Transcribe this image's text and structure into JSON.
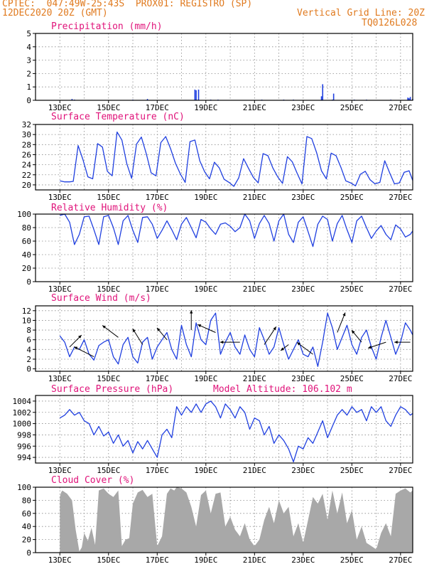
{
  "header": {
    "line1": "CPTEC:  047:49W-25:43S  PROX01: REGISTRO (SP)",
    "line2_left": "12DEC2020 20Z (GMT)",
    "line2_right": "Vertical Grid Line: 20Z",
    "code": "TQ0126L028"
  },
  "x_tick_labels": [
    "13DEC",
    "15DEC",
    "17DEC",
    "19DEC",
    "21DEC",
    "23DEC",
    "25DEC",
    "27DEC"
  ],
  "colors": {
    "line": "#1f3fe0",
    "title": "#e0137a",
    "header": "#e07a1f",
    "cloud": "#a8a8a8",
    "grid": "#888888"
  },
  "chart_data": [
    {
      "type": "bar",
      "title": "Precipitation (mm/h)",
      "y_ticks": [
        0,
        1,
        2,
        3,
        4,
        5
      ],
      "ylim": [
        0,
        5
      ],
      "x": [
        0.5,
        0.6,
        3.0,
        3.6,
        5.55,
        5.6,
        5.7,
        6.2,
        6.5,
        8.3,
        9.2,
        9.6,
        10.75,
        10.8,
        11.2,
        11.25,
        12.1,
        12.6,
        13.6,
        14.3,
        14.35,
        14.4,
        14.5
      ],
      "values": [
        0.1,
        0.05,
        0.05,
        0.1,
        0.8,
        0.75,
        0.8,
        0.05,
        0.05,
        0.05,
        0.05,
        0.05,
        0.3,
        1.2,
        0.05,
        0.5,
        0.05,
        0.05,
        0.05,
        0.2,
        0.15,
        0.25,
        0.1
      ]
    },
    {
      "type": "line",
      "title": "Surface Temperature (nC)",
      "y_ticks": [
        20,
        22,
        24,
        26,
        28,
        30,
        32
      ],
      "ylim": [
        19,
        32
      ],
      "x": [
        0,
        0.2,
        0.4,
        0.55,
        0.75,
        0.95,
        1.15,
        1.35,
        1.55,
        1.75,
        1.95,
        2.15,
        2.35,
        2.55,
        2.75,
        2.95,
        3.15,
        3.35,
        3.55,
        3.75,
        3.95,
        4.15,
        4.35,
        4.55,
        4.75,
        4.95,
        5.15,
        5.35,
        5.55,
        5.75,
        5.95,
        6.15,
        6.35,
        6.55,
        6.75,
        6.95,
        7.15,
        7.35,
        7.55,
        7.75,
        7.95,
        8.15,
        8.35,
        8.55,
        8.75,
        8.95,
        9.15,
        9.35,
        9.55,
        9.75,
        9.95,
        10.15,
        10.35,
        10.55,
        10.75,
        10.95,
        11.15,
        11.35,
        11.55,
        11.75,
        11.95,
        12.15,
        12.35,
        12.55,
        12.75,
        12.95,
        13.15,
        13.35,
        13.55,
        13.75,
        13.95,
        14.15,
        14.35,
        14.5
      ],
      "values": [
        20.8,
        20.6,
        20.6,
        20.7,
        27.8,
        25,
        21.6,
        21.2,
        28.2,
        27.5,
        22.7,
        21.8,
        30.5,
        28.9,
        24.2,
        21.3,
        28.1,
        29.5,
        26.2,
        22.4,
        21.8,
        28.4,
        29.6,
        27.2,
        24.3,
        22.2,
        20.5,
        28.6,
        28.9,
        24.8,
        22.6,
        21.2,
        24.5,
        23.4,
        21.1,
        20.5,
        19.7,
        21.4,
        25.2,
        23.3,
        21.5,
        20.4,
        26.2,
        25.8,
        23.4,
        21.6,
        20.3,
        25.6,
        24.6,
        22.3,
        20.2,
        29.6,
        29.2,
        26.4,
        22.8,
        21.2,
        26.3,
        25.8,
        23.5,
        20.8,
        20.4,
        19.8,
        22.1,
        22.7,
        21,
        20.2,
        20.5,
        24.8,
        22.4,
        20.2,
        20.4,
        22.5,
        22.8,
        20.9
      ]
    },
    {
      "type": "line",
      "title": "Relative Humidity (%)",
      "y_ticks": [
        0,
        20,
        40,
        60,
        80,
        100
      ],
      "ylim": [
        0,
        100
      ],
      "x": [
        0,
        0.2,
        0.4,
        0.6,
        0.8,
        1.0,
        1.2,
        1.4,
        1.6,
        1.8,
        2.0,
        2.2,
        2.4,
        2.6,
        2.8,
        3.0,
        3.2,
        3.4,
        3.6,
        3.8,
        4.0,
        4.2,
        4.4,
        4.6,
        4.8,
        5.0,
        5.2,
        5.4,
        5.6,
        5.8,
        6.0,
        6.2,
        6.4,
        6.6,
        6.8,
        7.0,
        7.2,
        7.4,
        7.6,
        7.8,
        8.0,
        8.2,
        8.4,
        8.6,
        8.8,
        9.0,
        9.2,
        9.4,
        9.6,
        9.8,
        10.0,
        10.2,
        10.4,
        10.6,
        10.8,
        11.0,
        11.2,
        11.4,
        11.6,
        11.8,
        12.0,
        12.2,
        12.4,
        12.6,
        12.8,
        13.0,
        13.2,
        13.4,
        13.6,
        13.8,
        14.0,
        14.2,
        14.4,
        14.5
      ],
      "values": [
        98,
        100,
        88,
        55,
        70,
        96,
        97,
        77,
        55,
        96,
        98,
        80,
        55,
        90,
        98,
        76,
        58,
        95,
        96,
        85,
        64,
        76,
        90,
        77,
        62,
        85,
        95,
        80,
        65,
        92,
        88,
        78,
        70,
        85,
        87,
        82,
        74,
        80,
        100,
        90,
        64,
        86,
        98,
        86,
        60,
        90,
        100,
        70,
        58,
        88,
        96,
        74,
        52,
        85,
        97,
        92,
        60,
        86,
        98,
        77,
        58,
        90,
        97,
        80,
        64,
        75,
        83,
        70,
        62,
        84,
        78,
        66,
        70,
        75
      ]
    },
    {
      "type": "line",
      "title": "Surface Wind (m/s)",
      "y_ticks": [
        0,
        2,
        4,
        6,
        8,
        10,
        12
      ],
      "ylim": [
        -0.5,
        13
      ],
      "x": [
        0,
        0.2,
        0.4,
        0.6,
        0.8,
        1.0,
        1.2,
        1.4,
        1.6,
        1.8,
        2.0,
        2.2,
        2.4,
        2.6,
        2.8,
        3.0,
        3.2,
        3.4,
        3.6,
        3.8,
        4.0,
        4.2,
        4.4,
        4.6,
        4.8,
        5.0,
        5.2,
        5.4,
        5.6,
        5.8,
        6.0,
        6.2,
        6.4,
        6.6,
        6.8,
        7.0,
        7.2,
        7.4,
        7.6,
        7.8,
        8.0,
        8.2,
        8.4,
        8.6,
        8.8,
        9.0,
        9.2,
        9.4,
        9.6,
        9.8,
        10.0,
        10.2,
        10.4,
        10.6,
        10.8,
        11.0,
        11.2,
        11.4,
        11.6,
        11.8,
        12.0,
        12.2,
        12.4,
        12.6,
        12.8,
        13.0,
        13.2,
        13.4,
        13.6,
        13.8,
        14.0,
        14.2,
        14.4,
        14.5
      ],
      "values": [
        6.8,
        5.5,
        2.5,
        4.5,
        4.0,
        6.0,
        3.0,
        1.8,
        4.8,
        5.5,
        6.0,
        2.5,
        1.0,
        5.0,
        6.5,
        2.5,
        1.2,
        5.5,
        6.5,
        2.0,
        4.5,
        6.0,
        7.5,
        4.0,
        2.0,
        9.0,
        5.0,
        2.5,
        9.5,
        6.0,
        5.0,
        10.0,
        11.5,
        3.0,
        5.5,
        7.5,
        4.5,
        3.0,
        7.0,
        4.0,
        2.5,
        8.5,
        6.0,
        3.0,
        4.5,
        8.5,
        5.0,
        2.0,
        4.0,
        6.0,
        3.0,
        2.5,
        4.5,
        0.5,
        5.5,
        11.5,
        8.5,
        4.0,
        6.5,
        9.0,
        5.0,
        3.0,
        6.5,
        8.0,
        4.5,
        2.0,
        6.5,
        10.0,
        6.5,
        3.0,
        5.5,
        9.5,
        8.0,
        7.0
      ],
      "arrows": {
        "x": [
          0.4,
          1.4,
          2.4,
          3.4,
          4.4,
          5.4,
          6.4,
          7.4,
          8.4,
          9.4,
          10.4,
          11.4,
          12.4,
          13.4,
          14.4
        ],
        "y": [
          4.5,
          2.5,
          6.5,
          5.0,
          6.0,
          8.0,
          7.5,
          5.5,
          5.0,
          5.0,
          3.0,
          7.5,
          5.5,
          5.5,
          5.5
        ],
        "u": [
          0.6,
          -1.0,
          -0.8,
          -0.5,
          -0.5,
          0.0,
          -0.9,
          -1.0,
          0.6,
          -0.4,
          -0.8,
          0.4,
          -0.5,
          -0.9,
          -0.8
        ],
        "v": [
          0.6,
          0.5,
          0.6,
          0.8,
          0.6,
          1.0,
          0.4,
          0.0,
          0.9,
          -0.3,
          0.6,
          1.0,
          0.6,
          -0.3,
          0.0
        ]
      }
    },
    {
      "type": "line",
      "title": "Surface Pressure (hPa)",
      "annotation": "Model Altitude: 106.102 m",
      "y_ticks": [
        994,
        996,
        998,
        1000,
        1002,
        1004
      ],
      "ylim": [
        993,
        1005
      ],
      "x": [
        0,
        0.2,
        0.4,
        0.6,
        0.8,
        1.0,
        1.2,
        1.4,
        1.6,
        1.8,
        2.0,
        2.2,
        2.4,
        2.6,
        2.8,
        3.0,
        3.2,
        3.4,
        3.6,
        3.8,
        4.0,
        4.2,
        4.4,
        4.6,
        4.8,
        5.0,
        5.2,
        5.4,
        5.6,
        5.8,
        6.0,
        6.2,
        6.4,
        6.6,
        6.8,
        7.0,
        7.2,
        7.4,
        7.6,
        7.8,
        8.0,
        8.2,
        8.4,
        8.6,
        8.8,
        9.0,
        9.2,
        9.4,
        9.6,
        9.8,
        10.0,
        10.2,
        10.4,
        10.6,
        10.8,
        11.0,
        11.2,
        11.4,
        11.6,
        11.8,
        12.0,
        12.2,
        12.4,
        12.6,
        12.8,
        13.0,
        13.2,
        13.4,
        13.6,
        13.8,
        14.0,
        14.2,
        14.4,
        14.5
      ],
      "values": [
        1001.0,
        1001.5,
        1002.5,
        1001.5,
        1002.0,
        1000.5,
        1000.0,
        998.0,
        999.5,
        997.8,
        998.5,
        996.5,
        998.0,
        996.0,
        997.0,
        994.8,
        996.8,
        995.5,
        997.0,
        995.5,
        994.0,
        998.0,
        999.0,
        997.5,
        1003.0,
        1001.5,
        1003.0,
        1002.0,
        1003.5,
        1002.0,
        1003.5,
        1004.0,
        1003.0,
        1001.0,
        1003.5,
        1002.5,
        1001.0,
        1003.0,
        1002.0,
        999.0,
        1001.0,
        1000.5,
        998.0,
        999.5,
        996.5,
        998.0,
        997.0,
        995.5,
        993.2,
        996.0,
        995.5,
        997.5,
        996.5,
        998.5,
        1000.5,
        997.5,
        999.5,
        1001.5,
        1002.5,
        1001.5,
        1003.0,
        1002.0,
        1002.5,
        1000.5,
        1003.0,
        1002.0,
        1003.0,
        1000.5,
        999.5,
        1001.5,
        1003.0,
        1002.5,
        1001.5,
        1001.8
      ]
    },
    {
      "type": "area",
      "title": "Cloud Cover (%)",
      "y_ticks": [
        0,
        20,
        40,
        60,
        80,
        100
      ],
      "ylim": [
        0,
        100
      ],
      "x": [
        0,
        0.05,
        0.1,
        0.3,
        0.5,
        0.65,
        0.8,
        0.9,
        1.0,
        1.15,
        1.3,
        1.45,
        1.6,
        1.8,
        2.0,
        2.2,
        2.4,
        2.55,
        2.7,
        2.85,
        3.0,
        3.2,
        3.4,
        3.6,
        3.8,
        4.0,
        4.2,
        4.4,
        4.55,
        4.7,
        4.8,
        5.0,
        5.2,
        5.4,
        5.6,
        5.8,
        6.0,
        6.2,
        6.4,
        6.6,
        6.8,
        7.0,
        7.2,
        7.4,
        7.6,
        7.8,
        8.0,
        8.2,
        8.4,
        8.6,
        8.8,
        9.0,
        9.2,
        9.4,
        9.6,
        9.8,
        10.0,
        10.2,
        10.4,
        10.6,
        10.8,
        11.0,
        11.2,
        11.4,
        11.6,
        11.8,
        12.0,
        12.2,
        12.4,
        12.6,
        12.8,
        13.0,
        13.2,
        13.4,
        13.6,
        13.8,
        14.0,
        14.2,
        14.4,
        14.5
      ],
      "values": [
        85,
        92,
        95,
        90,
        80,
        35,
        2,
        8,
        30,
        18,
        38,
        12,
        95,
        98,
        90,
        85,
        95,
        10,
        20,
        22,
        75,
        92,
        96,
        85,
        90,
        10,
        25,
        90,
        98,
        95,
        100,
        98,
        92,
        70,
        40,
        88,
        95,
        60,
        90,
        92,
        40,
        55,
        35,
        25,
        45,
        20,
        10,
        20,
        50,
        70,
        45,
        80,
        60,
        70,
        25,
        45,
        15,
        50,
        85,
        75,
        90,
        50,
        95,
        60,
        92,
        45,
        65,
        20,
        40,
        15,
        10,
        5,
        30,
        45,
        25,
        90,
        95,
        98,
        92,
        95
      ]
    }
  ]
}
